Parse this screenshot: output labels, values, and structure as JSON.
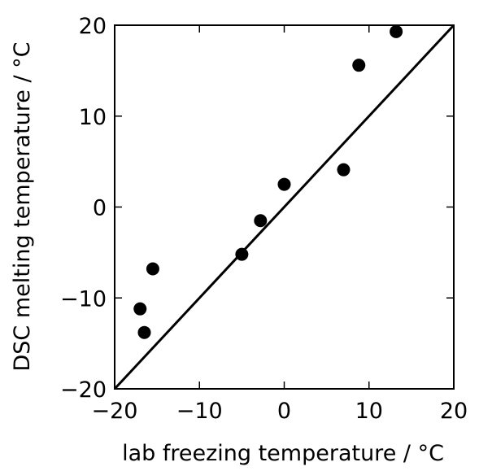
{
  "chart_data": {
    "type": "scatter",
    "title": "",
    "xlabel": "lab freezing temperature / °C",
    "ylabel": "DSC melting temperature / °C",
    "xlim": [
      -20,
      20
    ],
    "ylim": [
      -20,
      20
    ],
    "xticks": [
      -20,
      -10,
      0,
      10,
      20
    ],
    "yticks": [
      -20,
      -10,
      0,
      10,
      20
    ],
    "xtick_labels": [
      "−20",
      "−10",
      "0",
      "10",
      "20"
    ],
    "ytick_labels": [
      "−20",
      "−10",
      "0",
      "10",
      "20"
    ],
    "grid": false,
    "legend": "none",
    "points": [
      {
        "x": -17.0,
        "y": -11.2
      },
      {
        "x": -16.5,
        "y": -13.8
      },
      {
        "x": -15.5,
        "y": -6.8
      },
      {
        "x": -5.0,
        "y": -5.2
      },
      {
        "x": -2.8,
        "y": -1.5
      },
      {
        "x": 0.0,
        "y": 2.5
      },
      {
        "x": 7.0,
        "y": 4.1
      },
      {
        "x": 8.8,
        "y": 15.6
      },
      {
        "x": 13.2,
        "y": 19.3
      }
    ],
    "reference_line": {
      "type": "identity",
      "from": [
        -20,
        -20
      ],
      "to": [
        20,
        20
      ],
      "color": "#000000"
    },
    "marker_color": "#000000"
  }
}
